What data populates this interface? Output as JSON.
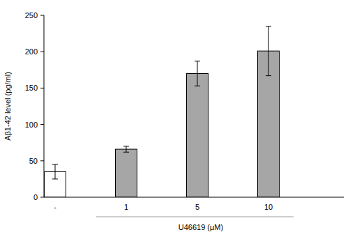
{
  "chart_data": {
    "type": "bar",
    "x_label": "U46619 (μM)",
    "y_label": "Aβ1-42 level (pg/ml)",
    "categories": [
      "-",
      "1",
      "5",
      "10"
    ],
    "values": [
      35,
      66,
      170,
      201
    ],
    "errors": [
      10,
      4,
      17,
      34
    ],
    "colors": [
      "#ffffff",
      "#a6a6a6",
      "#a6a6a6",
      "#a6a6a6"
    ],
    "ylim": [
      0,
      250
    ],
    "yticks": [
      0,
      50,
      100,
      150,
      200,
      250
    ],
    "grid": false
  }
}
